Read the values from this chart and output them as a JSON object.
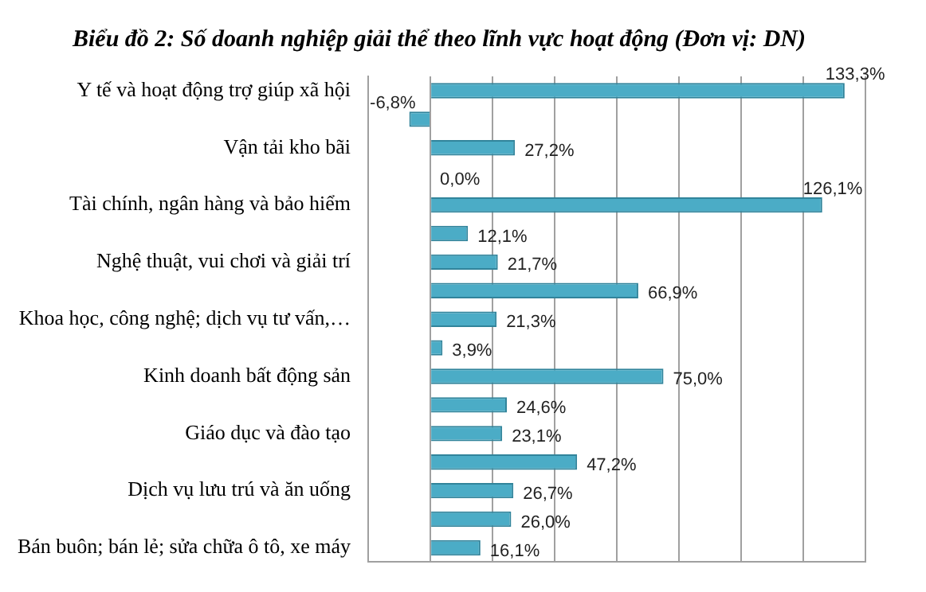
{
  "chart_data": {
    "type": "bar",
    "orientation": "horizontal",
    "title": "Biểu đồ 2: Số doanh nghiệp giải thể theo lĩnh vực hoạt động (Đơn vị: DN)",
    "categories": [
      "Y tế và hoạt động trợ giúp xã hội",
      null,
      "Vận tải kho bãi",
      null,
      "Tài chính, ngân hàng và bảo hiểm",
      null,
      "Nghệ thuật, vui chơi và giải trí",
      null,
      "Khoa học, công nghệ; dịch vụ tư vấn,…",
      null,
      "Kinh doanh bất động sản",
      null,
      "Giáo dục và đào tạo",
      null,
      "Dịch vụ lưu trú và ăn uống",
      null,
      "Bán buôn; bán lẻ; sửa chữa ô tô, xe máy"
    ],
    "values": [
      133.3,
      -6.8,
      27.2,
      0.0,
      126.1,
      12.1,
      21.7,
      66.9,
      21.3,
      3.9,
      75.0,
      24.6,
      23.1,
      47.2,
      26.7,
      26.0,
      16.1
    ],
    "value_labels": [
      "133,3%",
      "-6,8%",
      "27,2%",
      "0,0%",
      "126,1%",
      "12,1%",
      "21,7%",
      "66,9%",
      "21,3%",
      "3,9%",
      "75,0%",
      "24,6%",
      "23,1%",
      "47,2%",
      "26,7%",
      "26,0%",
      "16,1%"
    ],
    "color": "#4bacc6",
    "xlim": [
      -20,
      140
    ],
    "xticks": [
      {
        "value": -20,
        "label": null
      },
      {
        "value": 0,
        "label": null
      },
      {
        "value": 20,
        "label": null
      },
      {
        "value": 40,
        "label": null
      },
      {
        "value": 60,
        "label": null
      },
      {
        "value": 80,
        "label": null
      },
      {
        "value": 100,
        "label": null
      },
      {
        "value": 120,
        "label": null
      },
      {
        "value": 140,
        "label": null
      }
    ],
    "grid": "x",
    "tick_labels": "y",
    "legend": false
  }
}
